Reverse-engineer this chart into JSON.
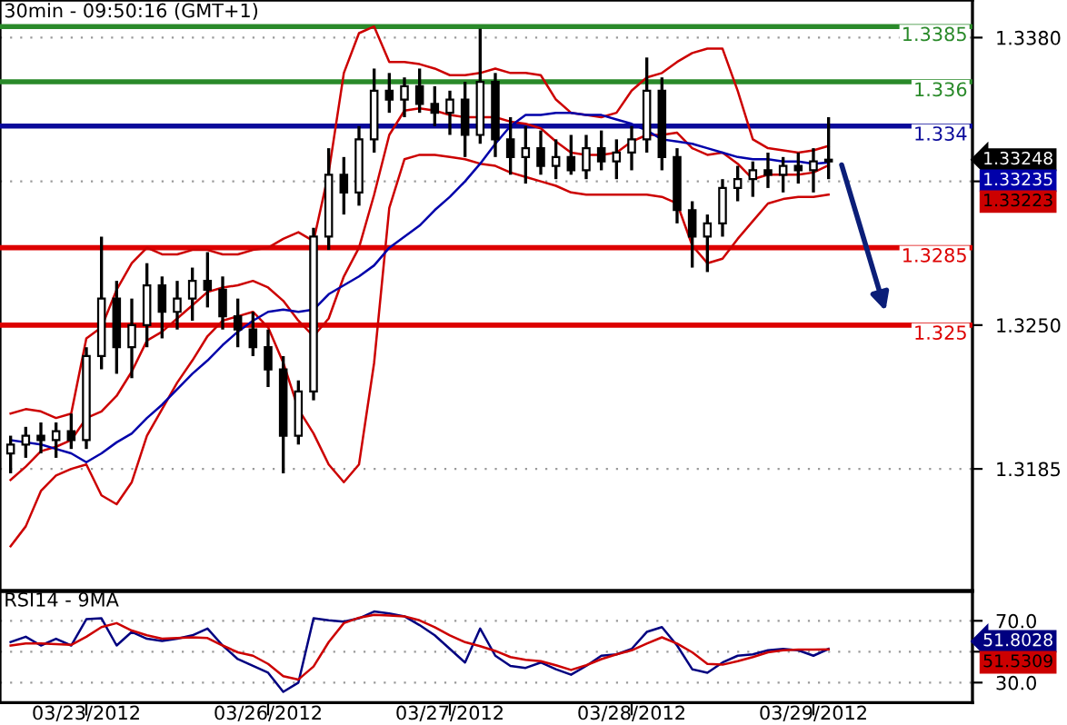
{
  "chart_data": [
    {
      "type": "candlestick",
      "title": "30min - 09:50:16 (GMT+1)",
      "color": "#000000",
      "categories": [
        null,
        null,
        null,
        null,
        null,
        null,
        null,
        null,
        null,
        null,
        null,
        null,
        null,
        null,
        null,
        null,
        null,
        null,
        null,
        null,
        null,
        null,
        null,
        null,
        null,
        null,
        null,
        null,
        null,
        null,
        null,
        null,
        null,
        null,
        null,
        null,
        null,
        null,
        null,
        null,
        null,
        null,
        null,
        null,
        null,
        null,
        null,
        null,
        null,
        null,
        null,
        null,
        null,
        null,
        null
      ],
      "ohlc": [
        [
          1.3192,
          1.32,
          1.3183,
          1.3196
        ],
        [
          1.3196,
          1.3204,
          1.319,
          1.32
        ],
        [
          1.32,
          1.3206,
          1.3192,
          1.3198
        ],
        [
          1.3198,
          1.3206,
          1.319,
          1.3202
        ],
        [
          1.3202,
          1.321,
          1.3194,
          1.3198
        ],
        [
          1.3198,
          1.324,
          1.3194,
          1.3236
        ],
        [
          1.3236,
          1.329,
          1.323,
          1.3262
        ],
        [
          1.3262,
          1.327,
          1.3228,
          1.324
        ],
        [
          1.324,
          1.3262,
          1.3226,
          1.325
        ],
        [
          1.325,
          1.3278,
          1.324,
          1.3268
        ],
        [
          1.3268,
          1.3272,
          1.3244,
          1.3256
        ],
        [
          1.3256,
          1.327,
          1.3248,
          1.3262
        ],
        [
          1.3262,
          1.3276,
          1.3252,
          1.327
        ],
        [
          1.327,
          1.3283,
          1.3258,
          1.3266
        ],
        [
          1.3266,
          1.3272,
          1.3248,
          1.3254
        ],
        [
          1.3254,
          1.3262,
          1.324,
          1.3248
        ],
        [
          1.3248,
          1.3256,
          1.3236,
          1.324
        ],
        [
          1.324,
          1.3248,
          1.3222,
          1.323
        ],
        [
          1.323,
          1.3236,
          1.3183,
          1.32
        ],
        [
          1.32,
          1.3225,
          1.3196,
          1.322
        ],
        [
          1.322,
          1.3294,
          1.3216,
          1.329
        ],
        [
          1.329,
          1.333,
          1.3284,
          1.3318
        ],
        [
          1.3318,
          1.3326,
          1.33,
          1.331
        ],
        [
          1.331,
          1.334,
          1.3304,
          1.3334
        ],
        [
          1.3334,
          1.3366,
          1.3328,
          1.3356
        ],
        [
          1.3356,
          1.3364,
          1.3346,
          1.3352
        ],
        [
          1.3352,
          1.3362,
          1.3344,
          1.3358
        ],
        [
          1.3358,
          1.3366,
          1.3346,
          1.335
        ],
        [
          1.335,
          1.3358,
          1.334,
          1.3346
        ],
        [
          1.3346,
          1.3356,
          1.3336,
          1.3352
        ],
        [
          1.3352,
          1.336,
          1.3326,
          1.3336
        ],
        [
          1.3336,
          1.3384,
          1.3332,
          1.336
        ],
        [
          1.336,
          1.3364,
          1.3326,
          1.3334
        ],
        [
          1.3334,
          1.3344,
          1.3318,
          1.3326
        ],
        [
          1.3326,
          1.334,
          1.3314,
          1.333
        ],
        [
          1.333,
          1.3338,
          1.3318,
          1.3322
        ],
        [
          1.3322,
          1.3334,
          1.3316,
          1.3326
        ],
        [
          1.3326,
          1.3336,
          1.3318,
          1.332
        ],
        [
          1.332,
          1.3336,
          1.3316,
          1.333
        ],
        [
          1.333,
          1.3338,
          1.332,
          1.3324
        ],
        [
          1.3324,
          1.3334,
          1.3316,
          1.3328
        ],
        [
          1.3328,
          1.334,
          1.332,
          1.3334
        ],
        [
          1.3334,
          1.3371,
          1.3328,
          1.3356
        ],
        [
          1.3356,
          1.3362,
          1.332,
          1.3326
        ],
        [
          1.3326,
          1.333,
          1.3296,
          1.3302
        ],
        [
          1.3302,
          1.3306,
          1.3276,
          1.329
        ],
        [
          1.329,
          1.33,
          1.3274,
          1.3296
        ],
        [
          1.3296,
          1.3316,
          1.329,
          1.3312
        ],
        [
          1.3312,
          1.3322,
          1.3306,
          1.3316
        ],
        [
          1.3316,
          1.3324,
          1.3308,
          1.332
        ],
        [
          1.332,
          1.3328,
          1.3312,
          1.3318
        ],
        [
          1.3318,
          1.3326,
          1.331,
          1.3322
        ],
        [
          1.3322,
          1.3328,
          1.3314,
          1.332
        ],
        [
          1.332,
          1.333,
          1.331,
          1.3324
        ],
        [
          1.3324,
          1.3344,
          1.3316,
          1.33248
        ]
      ],
      "series": [
        {
          "type": "line",
          "color": "#cc0000",
          "values": [
            1.321,
            1.3212,
            1.3211,
            1.3208,
            1.321,
            1.3244,
            1.3249,
            1.3266,
            1.3278,
            1.3285,
            1.3282,
            1.3282,
            1.3284,
            1.3284,
            1.3282,
            1.3282,
            1.3284,
            1.3285,
            1.3289,
            1.3292,
            1.3288,
            1.3319,
            1.3364,
            1.3382,
            1.3385,
            1.3369,
            1.3369,
            1.3368,
            1.3366,
            1.3363,
            1.3363,
            1.3364,
            1.3366,
            1.3364,
            1.3364,
            1.3363,
            1.3352,
            1.3346,
            1.3345,
            1.3344,
            1.3346,
            1.3356,
            1.3362,
            1.3364,
            1.3369,
            1.3373,
            1.3375,
            1.3375,
            1.3356,
            1.3334,
            1.333,
            1.3329,
            1.3328,
            1.3329,
            1.3331
          ]
        },
        {
          "type": "line",
          "color": "#cc0000",
          "values": [
            1.318,
            1.3186,
            1.3193,
            1.3195,
            1.3198,
            1.3208,
            1.3211,
            1.3218,
            1.3229,
            1.3243,
            1.3247,
            1.3253,
            1.3259,
            1.3265,
            1.3267,
            1.3268,
            1.327,
            1.3267,
            1.3261,
            1.3252,
            1.3245,
            1.3253,
            1.3272,
            1.3285,
            1.3309,
            1.3336,
            1.3347,
            1.3348,
            1.3347,
            1.3345,
            1.3344,
            1.3344,
            1.3344,
            1.3342,
            1.3341,
            1.3339,
            1.3333,
            1.3328,
            1.3327,
            1.3327,
            1.3328,
            1.3333,
            1.3336,
            1.3336,
            1.3337,
            1.333,
            1.3327,
            1.3328,
            1.3323,
            1.3316,
            1.3318,
            1.3318,
            1.3318,
            1.3319,
            1.33223
          ]
        },
        {
          "type": "line",
          "color": "#cc0000",
          "values": [
            1.315,
            1.3159,
            1.3175,
            1.3182,
            1.3185,
            1.3187,
            1.3173,
            1.3169,
            1.3179,
            1.32,
            1.3212,
            1.3224,
            1.3234,
            1.3245,
            1.3252,
            1.3254,
            1.3256,
            1.3249,
            1.3233,
            1.3212,
            1.3201,
            1.3187,
            1.3179,
            1.3187,
            1.3233,
            1.3303,
            1.3325,
            1.3327,
            1.3327,
            1.3326,
            1.3325,
            1.3323,
            1.3322,
            1.3319,
            1.3317,
            1.3315,
            1.3313,
            1.331,
            1.3309,
            1.3309,
            1.3309,
            1.3309,
            1.3309,
            1.3308,
            1.3305,
            1.3286,
            1.3278,
            1.328,
            1.3289,
            1.3297,
            1.3305,
            1.3307,
            1.3308,
            1.3308,
            1.3309
          ]
        },
        {
          "type": "line",
          "color": "#0000aa",
          "values": [
            1.3198,
            1.3197,
            1.3196,
            1.3194,
            1.3192,
            1.3188,
            1.3192,
            1.3197,
            1.3201,
            1.3208,
            1.3214,
            1.3221,
            1.3228,
            1.3234,
            1.3241,
            1.3247,
            1.3252,
            1.3256,
            1.3257,
            1.3256,
            1.3257,
            1.3264,
            1.3268,
            1.3272,
            1.3277,
            1.3285,
            1.329,
            1.3295,
            1.3302,
            1.3308,
            1.3315,
            1.3323,
            1.3332,
            1.334,
            1.3345,
            1.3345,
            1.3346,
            1.3346,
            1.3345,
            1.3345,
            1.3343,
            1.3341,
            1.3338,
            1.3334,
            1.3333,
            1.3332,
            1.333,
            1.3328,
            1.3326,
            1.3325,
            1.3325,
            1.3324,
            1.3324,
            1.3323,
            1.33235
          ]
        }
      ],
      "ylim": [
        1.313,
        1.3397
      ],
      "yticks": [
        {
          "value": 1.3185,
          "label": "1.3185"
        },
        {
          "value": 1.325,
          "label": "1.3250"
        },
        {
          "value": 1.3315,
          "label": null
        },
        {
          "value": 1.338,
          "label": "1.3380"
        }
      ],
      "ref_lines": [
        {
          "axis": "y",
          "value": 1.3385,
          "label": "1.3385",
          "color": "#2a8a2a"
        },
        {
          "axis": "y",
          "value": 1.336,
          "label": "1.336",
          "color": "#2a8a2a"
        },
        {
          "axis": "y",
          "value": 1.334,
          "label": "1.334",
          "color": "#0a0a9a"
        },
        {
          "axis": "y",
          "value": 1.3285,
          "label": "1.3285",
          "color": "#dd0000"
        },
        {
          "axis": "y",
          "value": 1.325,
          "label": "1.325",
          "color": "#dd0000"
        }
      ],
      "annotations": [
        "1.33248",
        "1.33235",
        "1.33223"
      ],
      "grid": "y",
      "tick_labels": "y"
    },
    {
      "type": "line",
      "title": "RSI14 - 9MA",
      "categories": [
        null,
        null,
        null,
        null,
        null,
        "03/23/2012",
        null,
        null,
        null,
        null,
        null,
        null,
        null,
        null,
        null,
        null,
        null,
        "03/26/2012",
        null,
        null,
        null,
        null,
        null,
        null,
        null,
        null,
        null,
        null,
        null,
        "03/27/2012",
        null,
        null,
        null,
        null,
        null,
        null,
        null,
        null,
        null,
        null,
        null,
        "03/28/2012",
        null,
        null,
        null,
        null,
        null,
        null,
        null,
        null,
        null,
        null,
        null,
        "03/29/2012",
        null
      ],
      "series": [
        {
          "color": "#000080",
          "values": [
            56.2,
            59.7,
            54,
            58.4,
            54,
            71,
            71.6,
            54,
            62.8,
            58.4,
            57,
            58.4,
            60.6,
            65,
            54,
            45.2,
            40.8,
            36.4,
            24,
            30,
            71.6,
            70.3,
            69.4,
            71.6,
            76,
            74.7,
            72.9,
            67.2,
            60.6,
            51.8,
            43,
            65,
            47.4,
            40.8,
            39.5,
            43,
            38.6,
            35.1,
            40.8,
            47.4,
            48.3,
            51.8,
            62.8,
            65.9,
            54,
            38.6,
            36.4,
            43,
            47.4,
            48.3,
            50.9,
            51.8,
            50.9,
            47.4,
            51.8028
          ]
        },
        {
          "color": "#cc0000",
          "values": [
            54,
            55.3,
            55.3,
            54.9,
            54.4,
            59.7,
            65.9,
            68.5,
            63.7,
            60.6,
            58.4,
            58.8,
            59.3,
            58.8,
            54,
            49.6,
            47.4,
            42.1,
            34.2,
            32,
            40.4,
            56.2,
            68.5,
            72,
            73.8,
            73.4,
            72.9,
            70.3,
            65.9,
            60.6,
            56.2,
            53.6,
            50.5,
            46.5,
            44.8,
            43.9,
            41.2,
            38.2,
            41.2,
            45.2,
            48.3,
            50.9,
            55.3,
            59.3,
            55.3,
            49.6,
            42.1,
            41.6,
            43.9,
            46.5,
            49.6,
            50.9,
            51.3,
            51.3,
            51.5309
          ]
        }
      ],
      "ylim": [
        17,
        89
      ],
      "yticks": [
        {
          "value": 30,
          "label": "30.0"
        },
        {
          "value": 50,
          "label": null
        },
        {
          "value": 70,
          "label": "70.0"
        }
      ],
      "annotations": [
        "51.8028",
        "51.5309"
      ],
      "grid": "y"
    }
  ]
}
